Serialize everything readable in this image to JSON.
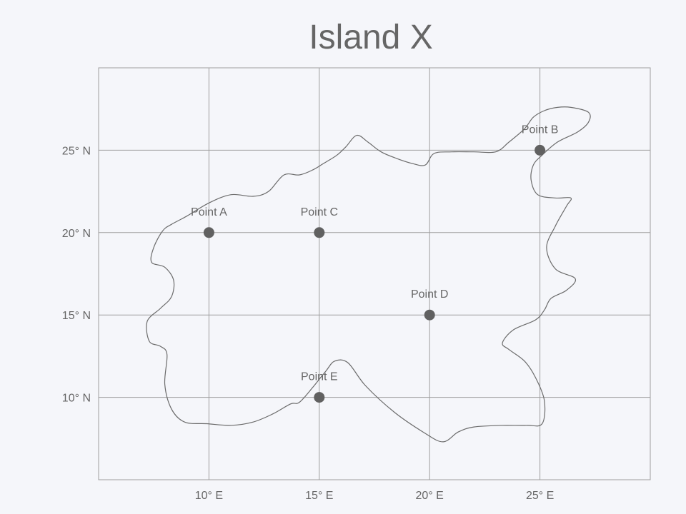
{
  "title": "Island X",
  "colors": {
    "background": "#f5f6fa",
    "grid": "#9e9e9e",
    "coastline": "#6b6b6b",
    "text": "#666666",
    "point": "#616161"
  },
  "map_data": {
    "type": "map",
    "x_range": [
      5,
      30
    ],
    "y_range": [
      5,
      30
    ],
    "x_ticks": [
      10,
      15,
      20,
      25
    ],
    "y_ticks": [
      10,
      15,
      20,
      25
    ],
    "x_tick_labels": [
      "10° E",
      "15° E",
      "20° E",
      "25° E"
    ],
    "y_tick_labels": [
      "10° N",
      "15° N",
      "20° N",
      "25° N"
    ],
    "grid": true,
    "points": [
      {
        "label": "Point A",
        "lon": 10,
        "lat": 20
      },
      {
        "label": "Point B",
        "lon": 25,
        "lat": 25
      },
      {
        "label": "Point C",
        "lon": 15,
        "lat": 20
      },
      {
        "label": "Point D",
        "lon": 20,
        "lat": 15
      },
      {
        "label": "Point E",
        "lon": 15,
        "lat": 10
      }
    ],
    "coastline": [
      [
        10.0,
        21.8
      ],
      [
        11.0,
        22.3
      ],
      [
        12.0,
        22.2
      ],
      [
        12.7,
        22.5
      ],
      [
        13.4,
        23.5
      ],
      [
        14.1,
        23.5
      ],
      [
        14.7,
        23.8
      ],
      [
        15.2,
        24.2
      ],
      [
        15.8,
        24.7
      ],
      [
        16.2,
        25.2
      ],
      [
        16.7,
        25.9
      ],
      [
        17.2,
        25.5
      ],
      [
        17.8,
        24.9
      ],
      [
        18.5,
        24.5
      ],
      [
        19.2,
        24.2
      ],
      [
        19.8,
        24.1
      ],
      [
        20.2,
        24.8
      ],
      [
        21.0,
        24.9
      ],
      [
        22.0,
        24.9
      ],
      [
        23.0,
        24.9
      ],
      [
        23.6,
        25.5
      ],
      [
        24.3,
        26.3
      ],
      [
        24.7,
        27.0
      ],
      [
        25.2,
        27.4
      ],
      [
        25.8,
        27.6
      ],
      [
        26.4,
        27.6
      ],
      [
        27.2,
        27.3
      ],
      [
        27.2,
        26.7
      ],
      [
        26.7,
        26.1
      ],
      [
        25.8,
        25.5
      ],
      [
        25.1,
        24.7
      ],
      [
        24.7,
        24.1
      ],
      [
        24.6,
        23.2
      ],
      [
        24.9,
        22.3
      ],
      [
        25.7,
        22.1
      ],
      [
        26.4,
        22.1
      ],
      [
        26.2,
        21.6
      ],
      [
        25.7,
        20.4
      ],
      [
        25.3,
        19.1
      ],
      [
        25.7,
        17.8
      ],
      [
        26.6,
        17.2
      ],
      [
        26.2,
        16.5
      ],
      [
        25.5,
        16.0
      ],
      [
        25.2,
        15.3
      ],
      [
        24.8,
        14.7
      ],
      [
        23.8,
        14.1
      ],
      [
        23.3,
        13.3
      ],
      [
        23.6,
        12.9
      ],
      [
        24.3,
        12.2
      ],
      [
        24.8,
        11.2
      ],
      [
        25.2,
        9.8
      ],
      [
        25.1,
        8.4
      ],
      [
        24.4,
        8.3
      ],
      [
        23.3,
        8.3
      ],
      [
        22.0,
        8.2
      ],
      [
        21.3,
        7.9
      ],
      [
        20.6,
        7.3
      ],
      [
        19.7,
        7.9
      ],
      [
        18.4,
        9.1
      ],
      [
        17.1,
        10.7
      ],
      [
        16.3,
        12.1
      ],
      [
        15.7,
        12.2
      ],
      [
        15.3,
        11.6
      ],
      [
        14.7,
        10.6
      ],
      [
        14.1,
        9.7
      ],
      [
        13.7,
        9.6
      ],
      [
        12.9,
        9.0
      ],
      [
        12.0,
        8.5
      ],
      [
        11.0,
        8.3
      ],
      [
        9.9,
        8.4
      ],
      [
        8.9,
        8.5
      ],
      [
        8.3,
        9.3
      ],
      [
        8.0,
        10.8
      ],
      [
        8.1,
        12.6
      ],
      [
        7.8,
        13.1
      ],
      [
        7.3,
        13.4
      ],
      [
        7.2,
        14.6
      ],
      [
        7.8,
        15.4
      ],
      [
        8.3,
        16.1
      ],
      [
        8.4,
        17.1
      ],
      [
        8.0,
        17.9
      ],
      [
        7.4,
        18.2
      ],
      [
        7.5,
        19.1
      ],
      [
        7.9,
        20.1
      ],
      [
        8.3,
        20.5
      ],
      [
        9.0,
        21.0
      ],
      [
        10.0,
        21.8
      ]
    ]
  }
}
